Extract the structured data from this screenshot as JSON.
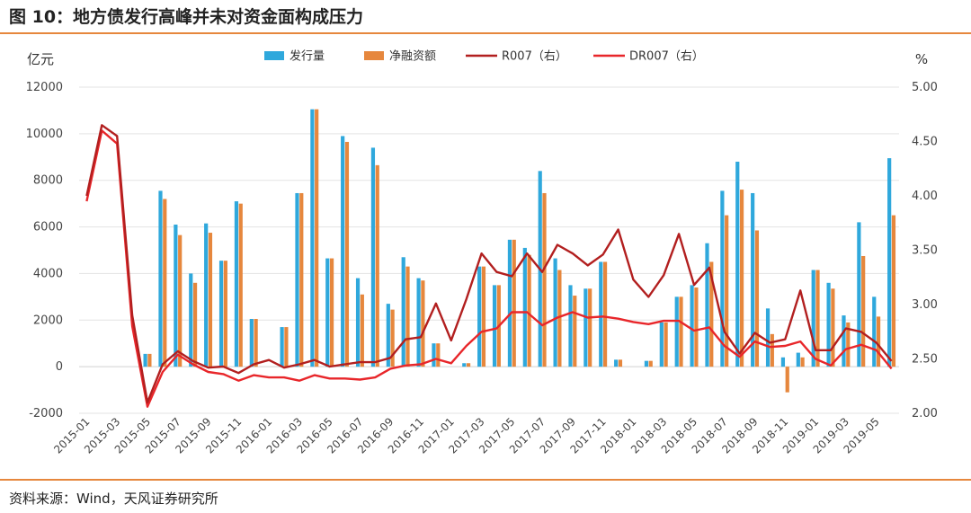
{
  "figure_title": "图 10：地方债发行高峰并未对资金面构成压力",
  "source": "资料来源：Wind，天风证券研究所",
  "colors": {
    "issuance": "#2fa8dc",
    "net_financing": "#e6873d",
    "r007": "#b21f1f",
    "dr007": "#e8262a",
    "rule": "#e6873d"
  },
  "chart_data": {
    "type": "bar",
    "ylabel_left": "亿元",
    "ylabel_right": "%",
    "ylim_left": [
      -2000,
      12000
    ],
    "ylim_right": [
      2.0,
      5.0
    ],
    "yticks_left": [
      "12000",
      "10000",
      "8000",
      "6000",
      "4000",
      "2000",
      "0",
      "-2000"
    ],
    "yticks_right": [
      "5.00",
      "4.50",
      "4.00",
      "3.50",
      "3.00",
      "2.50",
      "2.00"
    ],
    "legend_position": "top-center",
    "legend": [
      "发行量",
      "净融资额",
      "R007（右）",
      "DR007（右）"
    ],
    "xtick_labels": [
      "2015-01",
      "2015-03",
      "2015-05",
      "2015-07",
      "2015-09",
      "2015-11",
      "2016-01",
      "2016-03",
      "2016-05",
      "2016-07",
      "2016-09",
      "2016-11",
      "2017-01",
      "2017-03",
      "2017-05",
      "2017-07",
      "2017-09",
      "2017-11",
      "2018-01",
      "2018-03",
      "2018-05",
      "2018-07",
      "2018-09",
      "2018-11",
      "2019-01",
      "2019-03",
      "2019-05"
    ],
    "x": [
      "2015-01",
      "2015-02",
      "2015-03",
      "2015-04",
      "2015-05",
      "2015-06",
      "2015-07",
      "2015-08",
      "2015-09",
      "2015-10",
      "2015-11",
      "2015-12",
      "2016-01",
      "2016-02",
      "2016-03",
      "2016-04",
      "2016-05",
      "2016-06",
      "2016-07",
      "2016-08",
      "2016-09",
      "2016-10",
      "2016-11",
      "2016-12",
      "2017-01",
      "2017-02",
      "2017-03",
      "2017-04",
      "2017-05",
      "2017-06",
      "2017-07",
      "2017-08",
      "2017-09",
      "2017-10",
      "2017-11",
      "2017-12",
      "2018-01",
      "2018-02",
      "2018-03",
      "2018-04",
      "2018-05",
      "2018-06",
      "2018-07",
      "2018-08",
      "2018-09",
      "2018-10",
      "2018-11",
      "2018-12",
      "2019-01",
      "2019-02",
      "2019-03",
      "2019-04",
      "2019-05",
      "2019-06"
    ],
    "series": [
      {
        "name": "发行量",
        "type": "bar",
        "axis": "left",
        "values": [
          0,
          0,
          0,
          0,
          550,
          7550,
          6100,
          4000,
          6150,
          4550,
          7100,
          2050,
          0,
          1700,
          7450,
          11050,
          4650,
          9900,
          3800,
          9400,
          2700,
          4700,
          3800,
          1000,
          0,
          150,
          4300,
          3500,
          5450,
          5100,
          8400,
          4650,
          3500,
          3350,
          4500,
          300,
          0,
          250,
          1900,
          3000,
          3500,
          5300,
          7550,
          8800,
          7450,
          2500,
          400,
          600,
          4150,
          3600,
          2200,
          6200,
          3000,
          8950
        ]
      },
      {
        "name": "净融资额",
        "type": "bar",
        "axis": "left",
        "values": [
          0,
          0,
          0,
          0,
          550,
          7200,
          5650,
          3600,
          5750,
          4550,
          7000,
          2050,
          0,
          1700,
          7450,
          11050,
          4650,
          9650,
          3100,
          8650,
          2450,
          4300,
          3700,
          1000,
          0,
          150,
          4300,
          3500,
          5450,
          4800,
          7450,
          4150,
          3050,
          3350,
          4500,
          300,
          0,
          250,
          1900,
          3000,
          3400,
          4500,
          6500,
          7600,
          5850,
          1400,
          -1100,
          400,
          4150,
          3350,
          1900,
          4750,
          2150,
          6500
        ]
      },
      {
        "name": "R007（右）",
        "type": "line",
        "axis": "right",
        "values": [
          4.0,
          4.65,
          4.55,
          2.9,
          2.1,
          2.45,
          2.57,
          2.48,
          2.42,
          2.43,
          2.37,
          2.45,
          2.49,
          2.42,
          2.45,
          2.49,
          2.43,
          2.45,
          2.47,
          2.47,
          2.51,
          2.68,
          2.7,
          3.01,
          2.67,
          3.05,
          3.47,
          3.3,
          3.26,
          3.47,
          3.3,
          3.55,
          3.47,
          3.36,
          3.46,
          3.69,
          3.23,
          3.07,
          3.27,
          3.65,
          3.18,
          3.34,
          2.75,
          2.55,
          2.74,
          2.65,
          2.68,
          3.13,
          2.58,
          2.58,
          2.78,
          2.75,
          2.65,
          2.48
        ]
      },
      {
        "name": "DR007（右）",
        "type": "line",
        "axis": "right",
        "values": [
          3.95,
          4.6,
          4.48,
          2.8,
          2.06,
          2.38,
          2.54,
          2.45,
          2.38,
          2.36,
          2.3,
          2.35,
          2.33,
          2.33,
          2.3,
          2.35,
          2.32,
          2.32,
          2.31,
          2.33,
          2.41,
          2.44,
          2.45,
          2.5,
          2.46,
          2.62,
          2.75,
          2.78,
          2.93,
          2.93,
          2.81,
          2.88,
          2.93,
          2.88,
          2.89,
          2.87,
          2.84,
          2.82,
          2.85,
          2.85,
          2.76,
          2.79,
          2.62,
          2.52,
          2.66,
          2.61,
          2.62,
          2.66,
          2.5,
          2.44,
          2.59,
          2.63,
          2.58,
          2.41
        ]
      }
    ]
  }
}
